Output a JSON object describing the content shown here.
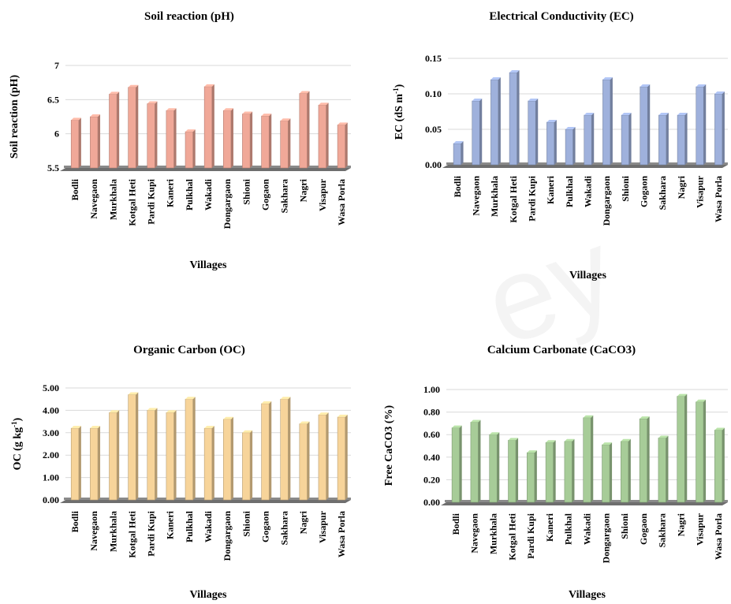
{
  "watermark_text": "ey",
  "chart_data": [
    {
      "type": "bar",
      "title": "Soil reaction (pH)",
      "xlabel": "Villages",
      "ylabel": "Soil reaction (pH)",
      "ylim": [
        5.5,
        7
      ],
      "yticks": [
        "5.5",
        "6",
        "6.5",
        "7"
      ],
      "grid": true,
      "color": "#f0a898",
      "categories": [
        "Bodli",
        "Navegaon",
        "Murkhala",
        "Kotgal Heti",
        "Pardi Kupi",
        "Kaneri",
        "Pulkhal",
        "Wakadi",
        "Dongargaon",
        "Shioni",
        "Gogaon",
        "Sakhara",
        "Nagri",
        "Visapur",
        "Wasa Porla"
      ],
      "values": [
        6.2,
        6.25,
        6.58,
        6.68,
        6.44,
        6.34,
        6.03,
        6.69,
        6.34,
        6.29,
        6.26,
        6.19,
        6.59,
        6.42,
        6.13
      ]
    },
    {
      "type": "bar",
      "title": "Electrical Conductivity (EC)",
      "xlabel": "Villages",
      "ylabel_main": "EC (dS m",
      "ylabel_sup": "-1",
      "ylabel_end": ")",
      "ylim": [
        0,
        0.15
      ],
      "yticks": [
        "0.00",
        "0.05",
        "0.10",
        "0.15"
      ],
      "grid": true,
      "color": "#9fb1dc",
      "categories": [
        "Bodli",
        "Navegaon",
        "Murkhala",
        "Kotgal Heti",
        "Pardi Kupi",
        "Kaneri",
        "Pulkhal",
        "Wakadi",
        "Dongargaon",
        "Shioni",
        "Gogaon",
        "Sakhara",
        "Nagri",
        "Visapur",
        "Wasa Porla"
      ],
      "values": [
        0.03,
        0.09,
        0.12,
        0.13,
        0.09,
        0.06,
        0.05,
        0.07,
        0.12,
        0.07,
        0.11,
        0.07,
        0.07,
        0.11,
        0.1
      ]
    },
    {
      "type": "bar",
      "title": "Organic Carbon (OC)",
      "xlabel": "Villages",
      "ylabel_main": "OC (g kg",
      "ylabel_sup": "-1",
      "ylabel_end": ")",
      "ylim": [
        0,
        5
      ],
      "yticks": [
        "0.00",
        "1.00",
        "2.00",
        "3.00",
        "4.00",
        "5.00"
      ],
      "grid": true,
      "color": "#f7d49a",
      "categories": [
        "Bodli",
        "Navegaon",
        "Murkhala",
        "Kotgal Heti",
        "Pardi Kupi",
        "Kaneri",
        "Pulkhal",
        "Wakadi",
        "Dongargaon",
        "Shioni",
        "Gogaon",
        "Sakhara",
        "Nagri",
        "Visapur",
        "Wasa Porla"
      ],
      "values": [
        3.2,
        3.2,
        3.9,
        4.7,
        4.0,
        3.9,
        4.5,
        3.2,
        3.6,
        3.0,
        4.3,
        4.5,
        3.4,
        3.8,
        3.7
      ]
    },
    {
      "type": "bar",
      "title": "Calcium Carbonate (CaCO3)",
      "xlabel": "Villages",
      "ylabel": "Free CaCO3 (%)",
      "ylim": [
        0,
        1
      ],
      "yticks": [
        "0.00",
        "0.20",
        "0.40",
        "0.60",
        "0.80",
        "1.00"
      ],
      "grid": true,
      "color": "#a7cc98",
      "categories": [
        "Bodli",
        "Navegaon",
        "Murkhala",
        "Kotgal Heti",
        "Pardi Kupi",
        "Kaneri",
        "Pulkhal",
        "Wakadi",
        "Dongargaon",
        "Shioni",
        "Gogaon",
        "Sakhara",
        "Nagri",
        "Visapur",
        "Wasa Porla"
      ],
      "values": [
        0.66,
        0.71,
        0.6,
        0.55,
        0.44,
        0.53,
        0.54,
        0.75,
        0.51,
        0.54,
        0.74,
        0.57,
        0.94,
        0.89,
        0.64
      ]
    }
  ]
}
